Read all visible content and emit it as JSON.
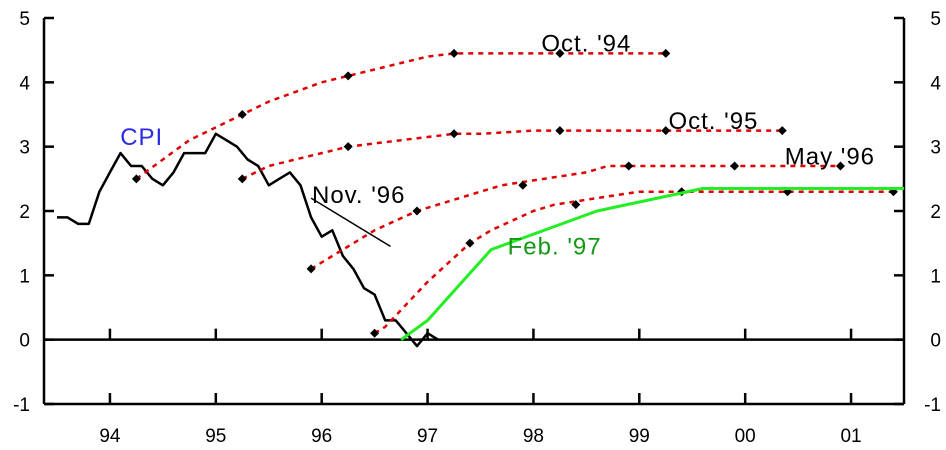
{
  "chart_data": {
    "type": "line",
    "y_ticks": [
      "5",
      "4",
      "3",
      "2",
      "1",
      "0",
      "-1"
    ],
    "ylim": [
      -1,
      5
    ],
    "x_ticks": [
      "94",
      "95",
      "96",
      "97",
      "98",
      "99",
      "00",
      "01"
    ],
    "xlim": [
      1993.5,
      2001.5
    ],
    "grid": false,
    "colors": {
      "axis": "#000000",
      "cpi": "#000000",
      "forecast": "#e00000",
      "feb97": "#22ee22",
      "cpi_label": "#2a2ae8",
      "neg_tick_left": "#22aa22"
    },
    "series": [
      {
        "name": "CPI",
        "style": "solid",
        "x": [
          1993.5,
          1993.6,
          1993.7,
          1993.8,
          1993.9,
          1994.0,
          1994.1,
          1994.2,
          1994.3,
          1994.4,
          1994.5,
          1994.6,
          1994.7,
          1994.8,
          1994.9,
          1995.0,
          1995.1,
          1995.2,
          1995.3,
          1995.4,
          1995.5,
          1995.6,
          1995.7,
          1995.8,
          1995.9,
          1996.0,
          1996.1,
          1996.2,
          1996.3,
          1996.4,
          1996.5,
          1996.6,
          1996.7,
          1996.8,
          1996.9,
          1997.0,
          1997.1
        ],
        "y": [
          1.9,
          1.9,
          1.8,
          1.8,
          2.3,
          2.6,
          2.9,
          2.7,
          2.7,
          2.5,
          2.4,
          2.6,
          2.9,
          2.9,
          2.9,
          3.2,
          3.1,
          3.0,
          2.8,
          2.7,
          2.4,
          2.5,
          2.6,
          2.4,
          1.9,
          1.6,
          1.7,
          1.3,
          1.1,
          0.8,
          0.7,
          0.3,
          0.3,
          0.1,
          -0.1,
          0.1,
          0.0
        ]
      },
      {
        "name": "Oct. '94",
        "style": "dashed",
        "x": [
          1994.25,
          1994.5,
          1994.75,
          1995.0,
          1995.25,
          1995.5,
          1995.75,
          1996.0,
          1996.25,
          1996.5,
          1996.75,
          1997.0,
          1997.25,
          1997.5,
          1997.75,
          1998.0,
          1998.25,
          1998.5,
          1998.75,
          1999.0,
          1999.25
        ],
        "y": [
          2.5,
          2.8,
          3.1,
          3.3,
          3.5,
          3.7,
          3.85,
          4.0,
          4.1,
          4.2,
          4.3,
          4.4,
          4.45,
          4.45,
          4.45,
          4.45,
          4.45,
          4.45,
          4.45,
          4.45,
          4.45
        ],
        "markers_x": [
          1994.25,
          1995.25,
          1996.25,
          1997.25,
          1998.25,
          1999.25
        ],
        "markers_y": [
          2.5,
          3.5,
          4.1,
          4.45,
          4.45,
          4.45
        ]
      },
      {
        "name": "Oct. '95",
        "style": "dashed",
        "x": [
          1995.25,
          1995.5,
          1995.75,
          1996.0,
          1996.25,
          1996.5,
          1996.75,
          1997.0,
          1997.25,
          1997.5,
          1998.0,
          1998.25,
          1998.5,
          1999.0,
          1999.25,
          1999.5,
          2000.0,
          2000.25,
          2000.35
        ],
        "y": [
          2.5,
          2.7,
          2.8,
          2.9,
          3.0,
          3.05,
          3.1,
          3.15,
          3.2,
          3.2,
          3.25,
          3.25,
          3.25,
          3.25,
          3.25,
          3.25,
          3.25,
          3.25,
          3.25
        ],
        "markers_x": [
          1995.25,
          1996.25,
          1997.25,
          1998.25,
          1999.25,
          2000.35
        ],
        "markers_y": [
          2.5,
          3.0,
          3.2,
          3.25,
          3.25,
          3.25
        ]
      },
      {
        "name": "May '96",
        "style": "dashed",
        "x": [
          1995.9,
          1996.1,
          1996.3,
          1996.5,
          1996.7,
          1996.9,
          1997.1,
          1997.3,
          1997.5,
          1997.7,
          1997.9,
          1998.1,
          1998.3,
          1998.5,
          1998.7,
          1998.9,
          1999.2,
          1999.5,
          1999.9,
          2000.3,
          2000.6,
          2000.9
        ],
        "y": [
          1.1,
          1.3,
          1.5,
          1.7,
          1.85,
          2.0,
          2.1,
          2.2,
          2.3,
          2.4,
          2.45,
          2.5,
          2.55,
          2.6,
          2.7,
          2.7,
          2.7,
          2.7,
          2.7,
          2.7,
          2.7,
          2.7
        ],
        "markers_x": [
          1995.9,
          1996.9,
          1997.9,
          1998.9,
          1999.9,
          2000.9
        ],
        "markers_y": [
          1.1,
          2.0,
          2.4,
          2.7,
          2.7,
          2.7
        ]
      },
      {
        "name": "Nov. '96",
        "style": "dashed",
        "x": [
          1996.5,
          1996.6,
          1996.8,
          1997.0,
          1997.2,
          1997.4,
          1997.6,
          1997.8,
          1998.0,
          1998.2,
          1998.4,
          1998.6,
          1998.8,
          1999.0,
          1999.2,
          1999.4,
          1999.6,
          2000.0,
          2000.4,
          2001.0,
          2001.4
        ],
        "y": [
          0.1,
          0.2,
          0.55,
          0.9,
          1.2,
          1.5,
          1.7,
          1.85,
          2.0,
          2.1,
          2.15,
          2.2,
          2.25,
          2.3,
          2.3,
          2.3,
          2.3,
          2.3,
          2.3,
          2.3,
          2.3
        ],
        "markers_x": [
          1996.5,
          1997.4,
          1998.4,
          1999.4,
          2000.4,
          2001.4
        ],
        "markers_y": [
          0.1,
          1.5,
          2.1,
          2.3,
          2.3,
          2.3
        ]
      },
      {
        "name": "Feb. '97",
        "style": "solid",
        "x": [
          1996.75,
          1997.0,
          1997.6,
          1998.6,
          1999.6,
          2000.6,
          2001.5
        ],
        "y": [
          0.0,
          0.3,
          1.4,
          2.0,
          2.35,
          2.35,
          2.35
        ]
      }
    ],
    "annotations": [
      {
        "text": "CPI",
        "x": 1994.3,
        "y": 3.15
      },
      {
        "text": "Oct. '94",
        "x": 1998.5,
        "y": 4.6
      },
      {
        "text": "Oct. '95",
        "x": 1999.7,
        "y": 3.4
      },
      {
        "text": "May '96",
        "x": 2000.8,
        "y": 2.85
      },
      {
        "text": "Nov. '96",
        "x": 1996.35,
        "y": 2.25
      },
      {
        "text": "Feb. '97",
        "x": 1998.2,
        "y": 1.45
      }
    ]
  }
}
